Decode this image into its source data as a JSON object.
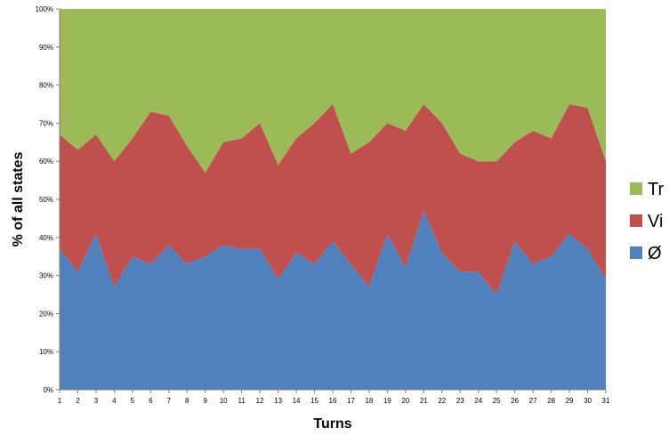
{
  "chart_data": {
    "type": "area",
    "stacked": "percent",
    "xlabel": "Turns",
    "ylabel": "% of all states",
    "x": [
      1,
      2,
      3,
      4,
      5,
      6,
      7,
      8,
      9,
      10,
      11,
      12,
      13,
      14,
      15,
      16,
      17,
      18,
      19,
      20,
      21,
      22,
      23,
      24,
      25,
      26,
      27,
      28,
      29,
      30,
      31
    ],
    "ylim": [
      0,
      100
    ],
    "yticks": [
      "0%",
      "10%",
      "20%",
      "30%",
      "40%",
      "50%",
      "60%",
      "70%",
      "80%",
      "90%",
      "100%"
    ],
    "grid": false,
    "legend_position": "right",
    "series": [
      {
        "name": "Ø",
        "color": "#4f81bd",
        "values": [
          37,
          31,
          41,
          27,
          35,
          33,
          38,
          33,
          35,
          38,
          37,
          37,
          29,
          36,
          33,
          39,
          33,
          27,
          41,
          32,
          47,
          36,
          31,
          31,
          25,
          39,
          33,
          35,
          41,
          37,
          29
        ]
      },
      {
        "name": "Vi",
        "color": "#c0504d",
        "values": [
          30,
          32,
          26,
          33,
          31,
          40,
          34,
          31,
          22,
          27,
          29,
          33,
          30,
          30,
          37,
          36,
          29,
          38,
          29,
          36,
          28,
          34,
          31,
          29,
          35,
          26,
          35,
          31,
          34,
          37,
          31
        ]
      },
      {
        "name": "Tr",
        "color": "#9bbb59",
        "values": [
          33,
          37,
          33,
          40,
          34,
          27,
          28,
          36,
          43,
          35,
          34,
          30,
          41,
          34,
          30,
          25,
          38,
          35,
          30,
          32,
          25,
          30,
          38,
          40,
          40,
          35,
          32,
          34,
          25,
          26,
          40
        ]
      }
    ]
  }
}
